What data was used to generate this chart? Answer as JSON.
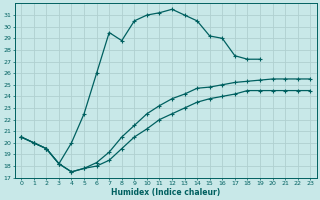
{
  "xlabel": "Humidex (Indice chaleur)",
  "bg_color": "#c8e8e8",
  "grid_color": "#b0d0d0",
  "line_color": "#006060",
  "xlim": [
    -0.5,
    23.5
  ],
  "ylim": [
    17,
    32
  ],
  "xticks": [
    0,
    1,
    2,
    3,
    4,
    5,
    6,
    7,
    8,
    9,
    10,
    11,
    12,
    13,
    14,
    15,
    16,
    17,
    18,
    19,
    20,
    21,
    22,
    23
  ],
  "yticks": [
    17,
    18,
    19,
    20,
    21,
    22,
    23,
    24,
    25,
    26,
    27,
    28,
    29,
    30,
    31
  ],
  "line1_x": [
    0,
    1,
    2,
    3,
    4,
    5,
    6,
    7,
    8,
    9,
    10,
    11,
    12,
    13,
    14,
    15,
    16,
    17,
    18,
    19
  ],
  "line1_y": [
    20.5,
    20.0,
    19.5,
    18.2,
    20.0,
    22.5,
    26.0,
    29.5,
    28.8,
    30.5,
    31.0,
    31.2,
    31.5,
    31.0,
    30.5,
    29.2,
    29.0,
    27.5,
    27.2,
    27.2
  ],
  "line2_x": [
    0,
    1,
    2,
    3,
    4,
    5,
    6,
    7,
    8,
    9,
    10,
    11,
    12,
    13,
    14,
    15,
    16,
    17,
    18,
    19,
    20,
    21,
    22,
    23
  ],
  "line2_y": [
    20.5,
    20.0,
    19.5,
    18.2,
    17.5,
    17.8,
    18.3,
    19.2,
    20.5,
    21.5,
    22.5,
    23.2,
    23.8,
    24.2,
    24.7,
    24.8,
    25.0,
    25.2,
    25.3,
    25.4,
    25.5,
    25.5,
    25.5,
    25.5
  ],
  "line3_x": [
    0,
    1,
    2,
    3,
    4,
    5,
    6,
    7,
    8,
    9,
    10,
    11,
    12,
    13,
    14,
    15,
    16,
    17,
    18,
    19,
    20,
    21,
    22,
    23
  ],
  "line3_y": [
    20.5,
    20.0,
    19.5,
    18.2,
    17.5,
    17.8,
    18.0,
    18.5,
    19.5,
    20.5,
    21.2,
    22.0,
    22.5,
    23.0,
    23.5,
    23.8,
    24.0,
    24.2,
    24.5,
    24.5,
    24.5,
    24.5,
    24.5,
    24.5
  ]
}
